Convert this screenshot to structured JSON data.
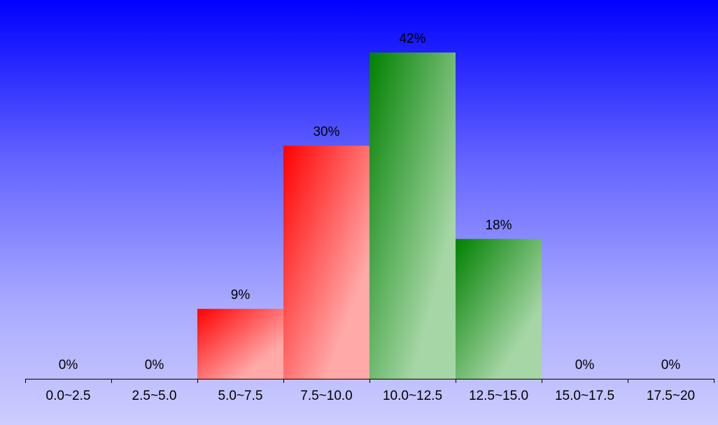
{
  "chart_data": {
    "type": "bar",
    "title": "",
    "xlabel": "",
    "ylabel": "",
    "categories": [
      "0.0~2.5",
      "2.5~5.0",
      "5.0~7.5",
      "7.5~10.0",
      "10.0~12.5",
      "12.5~15.0",
      "15.0~17.5",
      "17.5~20"
    ],
    "values": [
      0,
      0,
      9,
      30,
      42,
      18,
      0,
      0
    ],
    "value_labels": [
      "0%",
      "0%",
      "9%",
      "30%",
      "42%",
      "18%",
      "0%",
      "0%"
    ],
    "unit": "%",
    "ylim": [
      0,
      42
    ],
    "grid": false,
    "legend": "none",
    "bar_colors": [
      "#ff0000",
      "#ff0000",
      "#ff0000",
      "#ff0000",
      "#008000",
      "#008000",
      "#008000",
      "#008000"
    ],
    "background_colors": [
      "#0000ff",
      "#cdcdff"
    ]
  }
}
